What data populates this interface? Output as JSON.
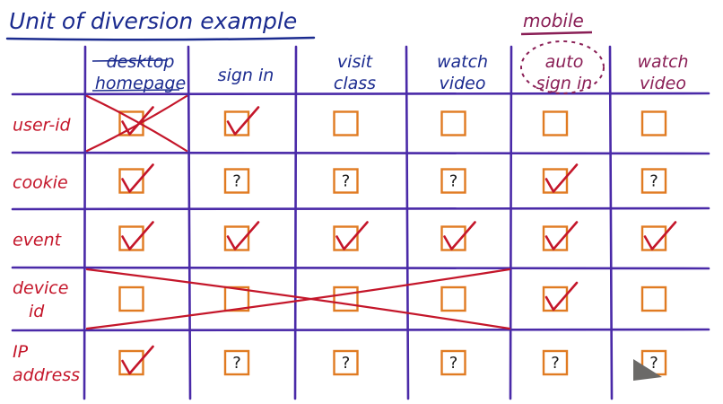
{
  "title": "Unit of diversion example",
  "group_label": "mobile",
  "columns": [
    {
      "lines": [
        "desktop",
        "homepage"
      ],
      "color": "#1b2b8f"
    },
    {
      "lines": [
        "sign in"
      ],
      "color": "#1b2b8f"
    },
    {
      "lines": [
        "visit",
        "class"
      ],
      "color": "#1b2b8f"
    },
    {
      "lines": [
        "watch",
        "video"
      ],
      "color": "#1b2b8f"
    },
    {
      "lines": [
        "auto",
        "sign in"
      ],
      "color": "#8a1f56"
    },
    {
      "lines": [
        "watch",
        "video"
      ],
      "color": "#8a1f56"
    }
  ],
  "rows": [
    {
      "lines": [
        "user-id"
      ],
      "cells": [
        "check",
        "check",
        "empty",
        "empty",
        "empty",
        "empty"
      ]
    },
    {
      "lines": [
        "cookie"
      ],
      "cells": [
        "check",
        "question",
        "question",
        "question",
        "check",
        "question"
      ]
    },
    {
      "lines": [
        "event"
      ],
      "cells": [
        "check",
        "check",
        "check",
        "check",
        "check",
        "check"
      ]
    },
    {
      "lines": [
        "device",
        "id"
      ],
      "cells": [
        "empty",
        "empty",
        "empty",
        "empty",
        "check",
        "empty"
      ]
    },
    {
      "lines": [
        "IP",
        "address"
      ],
      "cells": [
        "check",
        "question",
        "question",
        "question",
        "question",
        "question"
      ]
    }
  ],
  "crossed_out": [
    {
      "row": 0,
      "from_col": 0,
      "to_col": 0
    },
    {
      "row": 3,
      "from_col": 0,
      "to_col": 3
    }
  ],
  "colors": {
    "title": "#1b2b8f",
    "grid": "#4a2aa8",
    "row_label": "#c4162a",
    "checkbox": "#e07b22",
    "mark": "#c4162a",
    "mobile": "#8a1f56",
    "question": "#1a1a1a"
  }
}
